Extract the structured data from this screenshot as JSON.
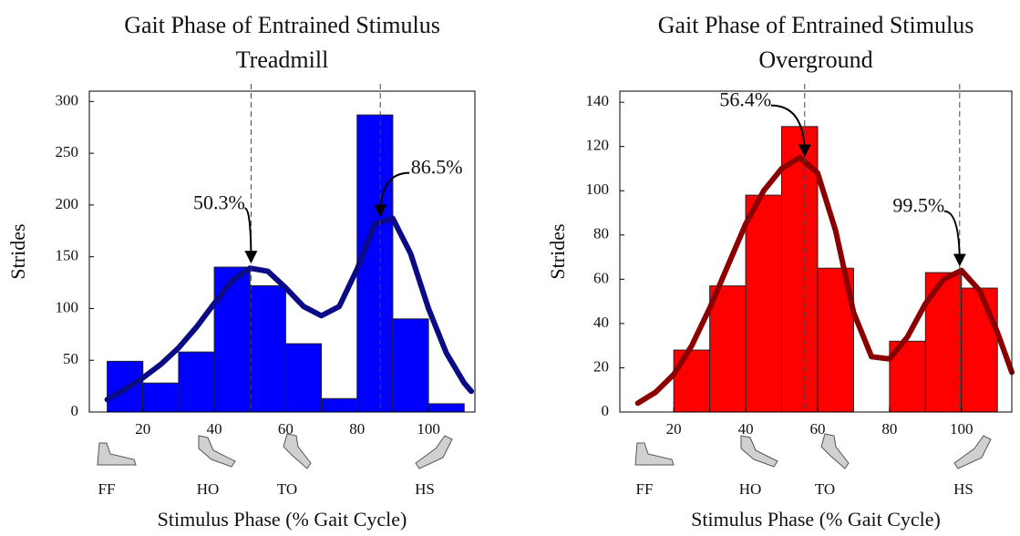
{
  "chart_data": [
    {
      "type": "histogram",
      "title": "Gait Phase of Entrained Stimulus",
      "subtitle": "Treadmill",
      "x_label": "Stimulus Phase (% Gait Cycle)",
      "y_label": "Strides",
      "bins": [
        10,
        20,
        30,
        40,
        50,
        60,
        70,
        80,
        90,
        100,
        110
      ],
      "counts": [
        49,
        28,
        58,
        140,
        122,
        66,
        13,
        287,
        90,
        8
      ],
      "color": "#0000ff",
      "curve": {
        "color": "#0b0b85",
        "x": [
          10,
          15,
          20,
          25,
          30,
          35,
          40,
          45,
          50,
          55,
          60,
          65,
          70,
          75,
          80,
          85,
          90,
          95,
          100,
          105,
          110,
          112
        ],
        "values": [
          12,
          22,
          33,
          46,
          62,
          82,
          105,
          127,
          139,
          136,
          120,
          102,
          93,
          102,
          138,
          182,
          187,
          153,
          100,
          57,
          28,
          20
        ]
      },
      "annotations": [
        {
          "x": 50.3,
          "text": "50.3%"
        },
        {
          "x": 86.5,
          "text": "86.5%"
        }
      ],
      "phases": [
        "FF",
        "HO",
        "TO",
        "HS"
      ],
      "xlim": [
        5,
        113
      ],
      "xticks": [
        20,
        40,
        60,
        80,
        100
      ],
      "ylim": [
        0,
        310
      ],
      "yticks": [
        0,
        50,
        100,
        150,
        200,
        250,
        300
      ]
    },
    {
      "type": "histogram",
      "title": "Gait Phase of Entrained Stimulus",
      "subtitle": "Overground",
      "x_label": "Stimulus Phase (% Gait Cycle)",
      "y_label": "Strides",
      "bins": [
        10,
        20,
        30,
        40,
        50,
        60,
        70,
        80,
        90,
        100,
        110
      ],
      "counts": [
        0,
        28,
        57,
        98,
        129,
        65,
        0,
        32,
        63,
        56
      ],
      "color": "#ff0000",
      "curve": {
        "color": "#8b0000",
        "x": [
          10,
          15,
          20,
          25,
          30,
          35,
          40,
          45,
          50,
          55,
          60,
          65,
          70,
          75,
          80,
          85,
          90,
          95,
          100,
          105,
          110,
          114
        ],
        "values": [
          4,
          9,
          17,
          30,
          47,
          66,
          85,
          100,
          110,
          115,
          108,
          82,
          45,
          25,
          24,
          34,
          49,
          60,
          64,
          55,
          36,
          18
        ]
      },
      "annotations": [
        {
          "x": 56.4,
          "text": "56.4%"
        },
        {
          "x": 99.5,
          "text": "99.5%"
        }
      ],
      "phases": [
        "FF",
        "HO",
        "TO",
        "HS"
      ],
      "xlim": [
        5,
        114
      ],
      "xticks": [
        20,
        40,
        60,
        80,
        100
      ],
      "ylim": [
        0,
        145
      ],
      "yticks": [
        0,
        20,
        40,
        60,
        80,
        100,
        120,
        140
      ]
    }
  ]
}
